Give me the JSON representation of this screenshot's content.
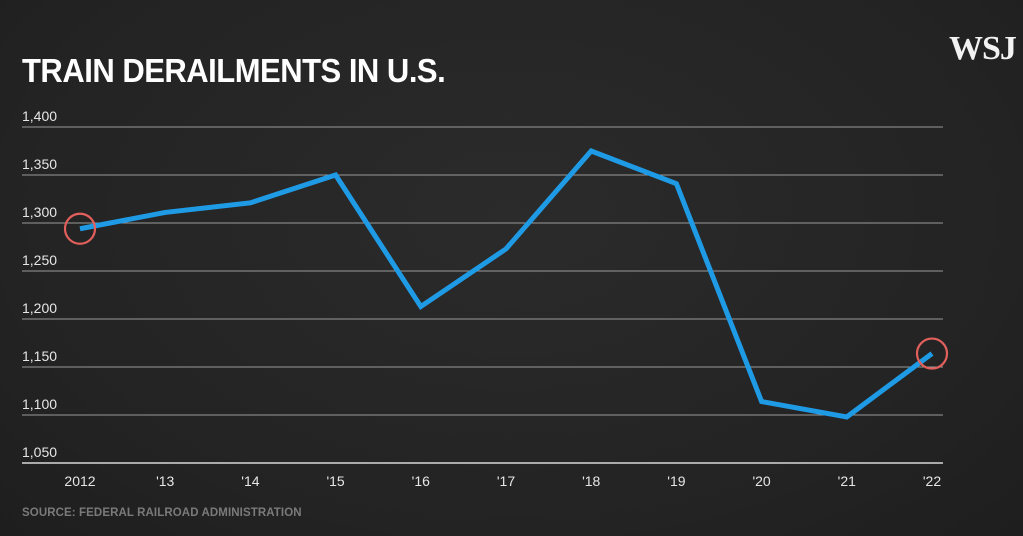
{
  "header": {
    "title": "TRAIN DERAILMENTS IN U.S.",
    "logo": "WSJ"
  },
  "footer": {
    "source": "SOURCE: FEDERAL RAILROAD ADMINISTRATION"
  },
  "colors": {
    "background": "#252525",
    "line": "#1f9be6",
    "highlight_circle": "#e2605c",
    "gridline": "#9a9a9a",
    "axis": "#d8d8d8"
  },
  "chart_data": {
    "type": "line",
    "title": "TRAIN DERAILMENTS IN U.S.",
    "xlabel": "",
    "ylabel": "",
    "categories": [
      "2012",
      "'13",
      "'14",
      "'15",
      "'16",
      "'17",
      "'18",
      "'19",
      "'20",
      "'21",
      "'22"
    ],
    "series": [
      {
        "name": "Train derailments",
        "values": [
          1294,
          1311,
          1321,
          1350,
          1213,
          1273,
          1375,
          1341,
          1114,
          1098,
          1164
        ]
      }
    ],
    "highlighted_points": [
      0,
      10
    ],
    "ylim": [
      1050,
      1400
    ],
    "yticks": [
      1050,
      1100,
      1150,
      1200,
      1250,
      1300,
      1350,
      1400
    ],
    "ytick_labels": [
      "1,050",
      "1,100",
      "1,150",
      "1,200",
      "1,250",
      "1,300",
      "1,350",
      "1,400"
    ],
    "grid": true
  }
}
